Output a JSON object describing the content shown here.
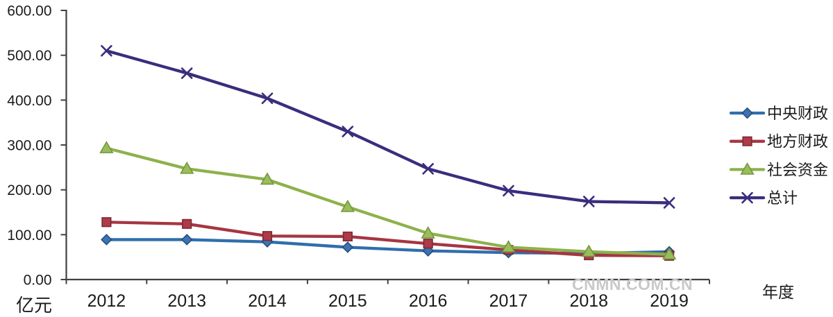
{
  "watermark": {
    "text": "CNMN.COM.CN",
    "color": "#c9c9c9"
  },
  "chart_data": {
    "type": "line",
    "title": "",
    "categories": [
      "2012",
      "2013",
      "2014",
      "2015",
      "2016",
      "2017",
      "2018",
      "2019"
    ],
    "series": [
      {
        "key": "central-finance",
        "name": "中央财政",
        "marker": "diamond",
        "line_color": "#2F6EAC",
        "marker_fill": "#3E72B4",
        "marker_stroke": "#22507E",
        "values": [
          89,
          89,
          84,
          72,
          64,
          60,
          58,
          62
        ]
      },
      {
        "key": "local-finance",
        "name": "地方财政",
        "marker": "square",
        "line_color": "#A53642",
        "marker_fill": "#AE3B49",
        "marker_stroke": "#7C2933",
        "values": [
          128,
          124,
          97,
          96,
          80,
          66,
          54,
          53
        ]
      },
      {
        "key": "social-capital",
        "name": "社会资金",
        "marker": "triangle",
        "line_color": "#8DB14B",
        "marker_fill": "#9ABD5C",
        "marker_stroke": "#75963C",
        "values": [
          293,
          247,
          223,
          162,
          103,
          72,
          62,
          56
        ]
      },
      {
        "key": "total",
        "name": "总计",
        "marker": "x",
        "line_color": "#3A2D7D",
        "marker_fill": "none",
        "marker_stroke": "#3A2D7D",
        "values": [
          510,
          460,
          404,
          330,
          247,
          198,
          174,
          171
        ]
      }
    ],
    "ylabel": "亿元",
    "xlabel": "年度",
    "ylim": [
      0,
      600
    ],
    "ytick_labels": [
      "0.00",
      "100.00",
      "200.00",
      "300.00",
      "400.00",
      "500.00",
      "600.00"
    ],
    "legend_position": "right",
    "grid": false,
    "axis_color": "#404040",
    "text_color": "#1b1b1b"
  }
}
